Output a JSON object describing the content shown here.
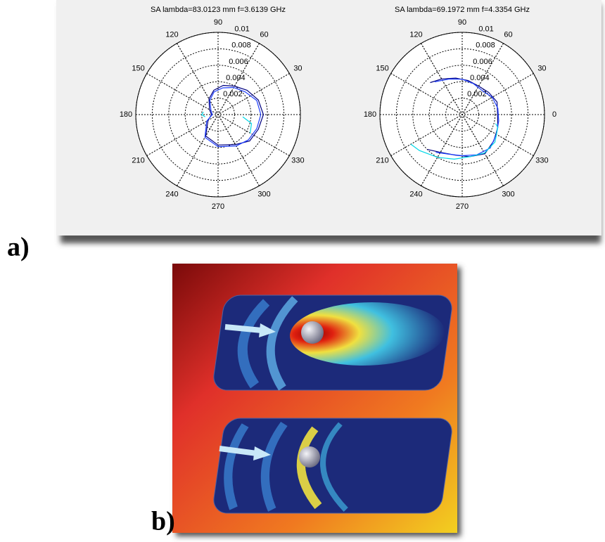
{
  "panels": {
    "a": "a)",
    "b": "b)"
  },
  "chart_data": [
    {
      "type": "polar",
      "title": "SA lambda=83.0123 mm f=3.6139 GHz",
      "rlim": [
        0,
        0.01
      ],
      "rticks": [
        0.002,
        0.004,
        0.006,
        0.008,
        0.01
      ],
      "thetaticks": [
        30,
        60,
        90,
        120,
        150,
        180,
        210,
        240,
        270,
        300,
        330
      ],
      "grid": true,
      "series": [
        {
          "color": "#000080",
          "theta": [
            0,
            20,
            40,
            60,
            80,
            100,
            120,
            150,
            180,
            210,
            240,
            270,
            300,
            320,
            340,
            360
          ],
          "values": [
            0.0055,
            0.0052,
            0.0046,
            0.004,
            0.0036,
            0.003,
            0.0022,
            0.0012,
            0.0008,
            0.0014,
            0.003,
            0.0037,
            0.0042,
            0.005,
            0.0052,
            0.0055
          ]
        },
        {
          "color": "#2040ff",
          "theta": [
            0,
            20,
            40,
            60,
            80,
            100,
            120,
            150,
            180,
            210,
            240,
            270,
            300,
            320,
            340,
            360
          ],
          "values": [
            0.0052,
            0.005,
            0.0043,
            0.0038,
            0.0033,
            0.0028,
            0.002,
            0.001,
            0.0007,
            0.0016,
            0.0032,
            0.0039,
            0.0044,
            0.0048,
            0.005,
            0.0052
          ]
        },
        {
          "color": "#00d8e8",
          "theta": [
            170,
            180,
            190,
            null,
            330,
            345,
            355
          ],
          "values": [
            0.0018,
            0.002,
            0.0016,
            null,
            0.0045,
            0.0042,
            0.003
          ]
        }
      ]
    },
    {
      "type": "polar",
      "title": "SA lambda=69.1972 mm f=4.3354 GHz",
      "rlim": [
        0,
        0.01
      ],
      "rticks": [
        0.002,
        0.004,
        0.006,
        0.008,
        0.01
      ],
      "thetaticks": [
        0,
        30,
        60,
        90,
        120,
        150,
        180,
        210,
        240,
        270,
        300,
        330
      ],
      "grid": true,
      "series": [
        {
          "color": "#000080",
          "theta": [
            135,
            120,
            100,
            80,
            60,
            40,
            20,
            0,
            340,
            320,
            300,
            280,
            260,
            240,
            225
          ],
          "values": [
            0.0055,
            0.005,
            0.0045,
            0.0042,
            0.004,
            0.0042,
            0.0045,
            0.0043,
            0.0046,
            0.005,
            0.0055,
            0.0052,
            0.005,
            0.0053,
            0.006
          ]
        },
        {
          "color": "#2040ff",
          "theta": [
            130,
            110,
            90,
            70,
            50,
            30,
            10,
            350,
            330,
            310,
            290,
            270,
            250,
            235
          ],
          "values": [
            0.0052,
            0.0046,
            0.0043,
            0.004,
            0.0038,
            0.0042,
            0.0044,
            0.0045,
            0.0048,
            0.0053,
            0.0052,
            0.005,
            0.0051,
            0.0056
          ]
        },
        {
          "color": "#00d8e8",
          "theta": [
            210,
            220,
            240,
            260,
            280,
            300,
            320,
            340,
            345
          ],
          "values": [
            0.0072,
            0.0068,
            0.006,
            0.0055,
            0.0052,
            0.0054,
            0.0052,
            0.0046,
            0.0042
          ]
        }
      ]
    }
  ]
}
